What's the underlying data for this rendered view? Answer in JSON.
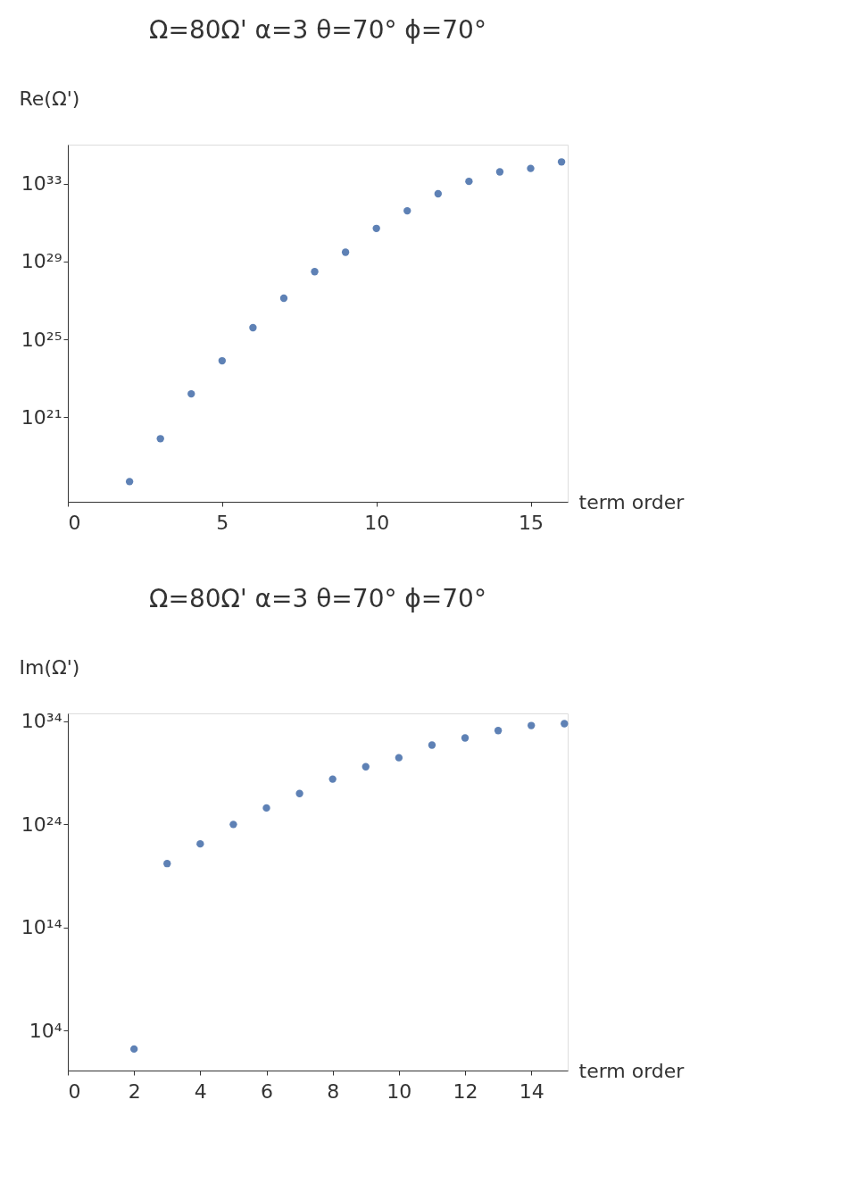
{
  "chart_data": [
    {
      "type": "scatter",
      "title": "Ω=80Ω' α=3 θ=70° ϕ=70°",
      "xlabel": "term order",
      "ylabel": "Re(Ω')",
      "log": "y",
      "grid": false,
      "marker": "circle",
      "x": [
        2,
        3,
        4,
        5,
        6,
        7,
        8,
        9,
        10,
        11,
        12,
        13,
        14,
        15,
        16
      ],
      "series": [
        {
          "color": "#5e81b5",
          "values": [
            5e+17,
            8e+19,
            1.6e+22,
            8e+23,
            4e+25,
            1.3e+27,
            3e+28,
            3e+29,
            5e+30,
            4e+31,
            3e+32,
            1.3e+33,
            4e+33,
            6e+33,
            1.3e+34
          ]
        }
      ],
      "xlim": [
        0,
        16.2
      ],
      "xticks": [
        0,
        5,
        10,
        15
      ],
      "ylim": [
        4.6e+16,
        1e+35
      ],
      "yticks": [
        {
          "value": 1e+21,
          "label": "10²¹"
        },
        {
          "value": 1e+25,
          "label": "10²⁵"
        },
        {
          "value": 1e+29,
          "label": "10²⁹"
        },
        {
          "value": 1e+33,
          "label": "10³³"
        }
      ]
    },
    {
      "type": "scatter",
      "title": "Ω=80Ω' α=3 θ=70° ϕ=70°",
      "xlabel": "term order",
      "ylabel": "Im(Ω')",
      "log": "y",
      "grid": false,
      "marker": "circle",
      "x": [
        2,
        3,
        4,
        5,
        6,
        7,
        8,
        9,
        10,
        11,
        12,
        13,
        14,
        15
      ],
      "series": [
        {
          "color": "#5e81b5",
          "values": [
            160,
            1.6e+20,
            1.3e+22,
            1e+24,
            4e+25,
            1e+27,
            2.5e+28,
            4e+29,
            3e+30,
            5e+31,
            2.5e+32,
            1.3e+33,
            4e+33,
            6e+33
          ]
        }
      ],
      "xlim": [
        0,
        15.1
      ],
      "xticks": [
        0,
        2,
        4,
        6,
        8,
        10,
        12,
        14
      ],
      "ylim": [
        1.3,
        6e+34
      ],
      "yticks": [
        {
          "value": 10000.0,
          "label": "10⁴"
        },
        {
          "value": 100000000000000.0,
          "label": "10¹⁴"
        },
        {
          "value": 1e+24,
          "label": "10²⁴"
        },
        {
          "value": 1e+34,
          "label": "10³⁴"
        }
      ]
    }
  ]
}
